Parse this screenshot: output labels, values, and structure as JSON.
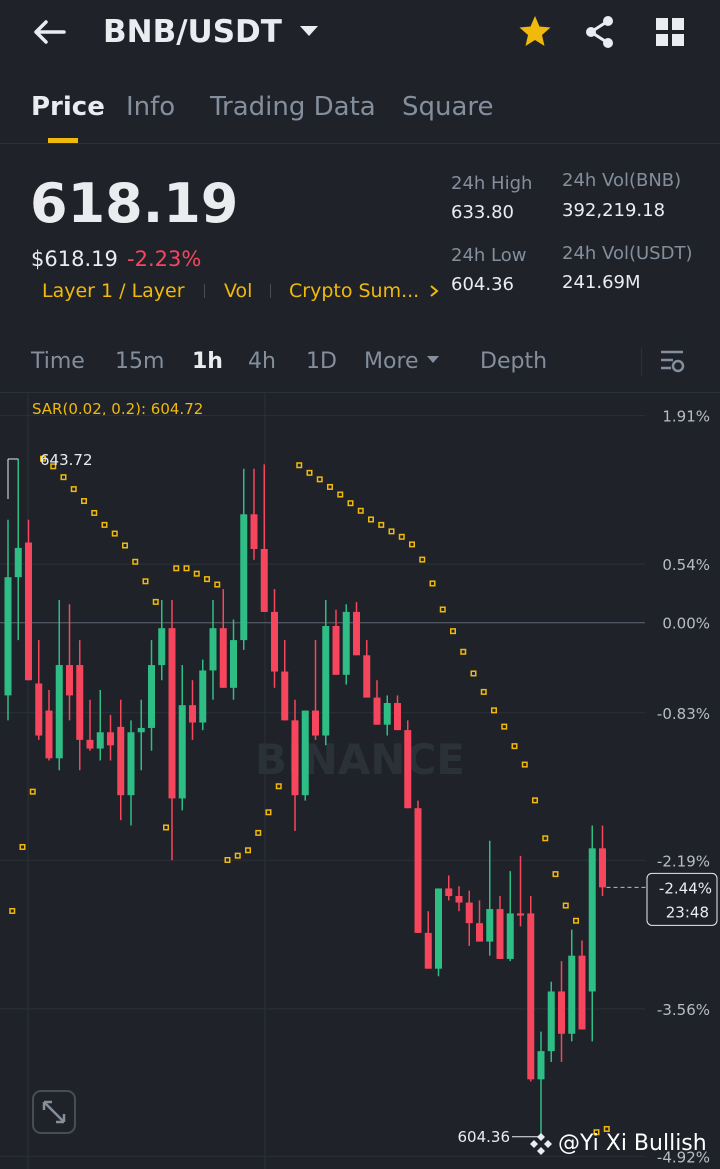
{
  "header": {
    "pair": "BNB/USDT"
  },
  "tabs": [
    "Price",
    "Info",
    "Trading Data",
    "Square"
  ],
  "price": {
    "last": "618.19",
    "usd": "$618.19",
    "change": "-2.23%"
  },
  "tags": [
    "Layer 1 / Layer",
    "Vol",
    "Crypto Sum..."
  ],
  "stats": [
    {
      "label": "24h High",
      "value": "633.80"
    },
    {
      "label": "24h Vol(BNB)",
      "value": "392,219.18"
    },
    {
      "label": "24h Low",
      "value": "604.36"
    },
    {
      "label": "24h Vol(USDT)",
      "value": "241.69M"
    }
  ],
  "intervals": [
    "Time",
    "15m",
    "1h",
    "4h",
    "1D",
    "More",
    "Depth"
  ],
  "watermark": "@Yi Xi Bullish",
  "chart_data": {
    "type": "candlestick",
    "indicator": "SAR(0.02, 0.2): 604.72",
    "watermark": "BINANCE",
    "high_label": "643.72",
    "low_label": "604.36",
    "last_label": "-2.44%",
    "countdown": "23:48",
    "up_color": "#2ebd85",
    "down_color": "#f6465d",
    "sar_color": "#f0b90b",
    "grid": true,
    "ylim": [
      -5.0,
      2.1
    ],
    "yticks": [
      {
        "value": 1.91,
        "label": "1.91%"
      },
      {
        "value": 0.54,
        "label": "0.54%"
      },
      {
        "value": 0,
        "label": "0.00%"
      },
      {
        "value": -0.83,
        "label": "-0.83%"
      },
      {
        "value": -2.19,
        "label": "-2.19%"
      },
      {
        "value": -3.56,
        "label": "-3.56%"
      },
      {
        "value": -4.92,
        "label": "-4.92%"
      }
    ],
    "open": [
      -0.67,
      0.42,
      0.74,
      -0.56,
      -0.81,
      -1.25,
      -0.39,
      -0.39,
      -1.08,
      -1.16,
      -1.01,
      -0.96,
      -1.59,
      -1.01,
      -0.97,
      -0.39,
      -0.05,
      -1.62,
      -0.76,
      -0.92,
      -0.44,
      -0.05,
      -0.6,
      -0.16,
      1.0,
      0.68,
      0.1,
      -0.45,
      -0.9,
      -1.59,
      -0.81,
      -1.04,
      -0.03,
      -0.48,
      0.1,
      -0.3,
      -0.69,
      -0.94,
      -0.74,
      -0.99,
      -1.71,
      -2.86,
      -3.19,
      -2.45,
      -2.52,
      -2.58,
      -2.77,
      -2.94,
      -2.64,
      -3.1,
      -2.68,
      -2.68,
      -4.21,
      -3.95,
      -3.4,
      -3.79,
      -3.07,
      -3.4,
      -2.08
    ],
    "high": [
      0.95,
      1.51,
      0.95,
      -0.16,
      -0.62,
      0.21,
      0.17,
      -0.16,
      -0.71,
      -0.62,
      -0.85,
      -0.71,
      -0.9,
      -0.71,
      -0.16,
      0.21,
      0.21,
      -0.39,
      -0.53,
      -0.34,
      0.21,
      0.31,
      0.03,
      1.42,
      1.42,
      1.46,
      0.31,
      -0.16,
      -0.71,
      -0.81,
      -0.16,
      0.21,
      0.12,
      0.17,
      0.19,
      -0.16,
      -0.53,
      -0.67,
      -0.67,
      -0.9,
      -1.64,
      -2.66,
      -2.45,
      -2.33,
      -2.43,
      -2.47,
      -2.56,
      -2.01,
      -2.52,
      -2.29,
      -2.15,
      -2.52,
      -3.77,
      -3.31,
      -3.12,
      -2.83,
      -2.93,
      -1.87,
      -1.87
    ],
    "low": [
      -0.9,
      -0.16,
      -0.53,
      -1.08,
      -1.27,
      -1.36,
      -0.9,
      -1.36,
      -1.18,
      -1.27,
      -1.27,
      -1.82,
      -1.87,
      -1.36,
      -1.18,
      -0.53,
      -2.19,
      -1.73,
      -1.08,
      -0.99,
      -0.71,
      -0.6,
      -0.71,
      -0.25,
      0.58,
      0.1,
      -0.6,
      -0.9,
      -1.92,
      -1.64,
      -1.08,
      -1.13,
      -0.48,
      -0.57,
      -0.3,
      -0.69,
      -0.94,
      -1.04,
      -0.99,
      -1.71,
      -2.86,
      -3.19,
      -3.26,
      -2.56,
      -2.66,
      -2.98,
      -2.94,
      -3.07,
      -3.1,
      -3.12,
      -2.8,
      -4.23,
      -4.74,
      -4.05,
      -4.05,
      -3.86,
      -3.75,
      -3.86,
      -2.52
    ],
    "close": [
      0.42,
      0.69,
      -0.53,
      -1.04,
      -1.25,
      -0.39,
      -0.67,
      -1.08,
      -1.16,
      -1.01,
      -1.13,
      -1.59,
      -1.01,
      -0.97,
      -0.39,
      -0.05,
      -1.62,
      -0.76,
      -0.92,
      -0.44,
      -0.05,
      -0.6,
      -0.16,
      1.0,
      0.68,
      0.1,
      -0.45,
      -0.9,
      -1.59,
      -0.81,
      -1.04,
      -0.03,
      -0.48,
      0.1,
      -0.3,
      -0.69,
      -0.94,
      -0.74,
      -0.99,
      -1.71,
      -2.86,
      -3.19,
      -2.45,
      -2.52,
      -2.58,
      -2.77,
      -2.94,
      -2.64,
      -3.1,
      -2.68,
      -2.7,
      -4.21,
      -3.95,
      -3.4,
      -3.79,
      -3.07,
      -3.75,
      -2.08,
      -2.44
    ],
    "sar": [
      -2.66,
      -2.07,
      -1.56,
      1.51,
      1.44,
      1.34,
      1.23,
      1.12,
      1.01,
      0.9,
      0.82,
      0.71,
      0.56,
      0.38,
      0.19,
      -1.89,
      0.5,
      0.5,
      0.45,
      0.4,
      0.35,
      -2.19,
      -2.15,
      -2.1,
      -1.94,
      -1.75,
      -1.51,
      null,
      1.45,
      1.38,
      1.32,
      1.25,
      1.18,
      1.1,
      1.03,
      0.95,
      0.9,
      0.84,
      0.79,
      0.72,
      0.58,
      0.36,
      0.12,
      -0.08,
      -0.27,
      -0.47,
      -0.64,
      -0.81,
      -0.96,
      -1.14,
      -1.31,
      -1.64,
      -1.99,
      -2.32,
      -2.61,
      -2.75,
      null,
      -4.7,
      -4.67
    ]
  }
}
